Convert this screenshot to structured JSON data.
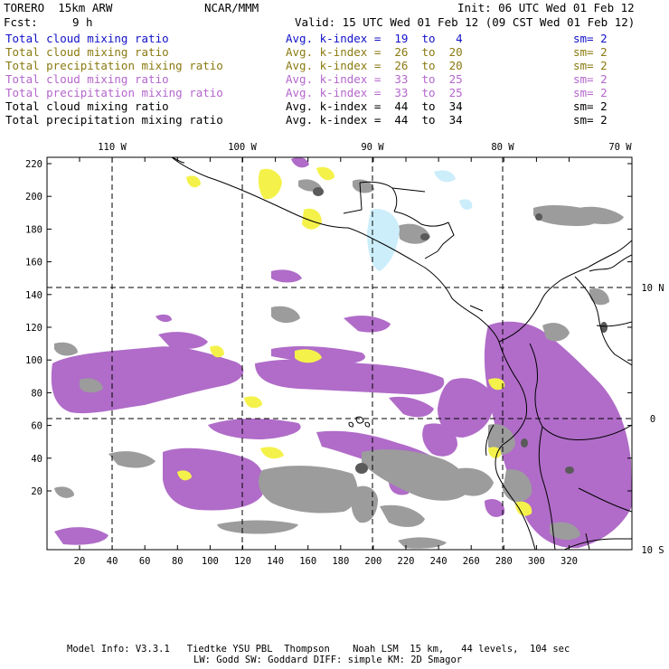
{
  "header": {
    "model": "TORERO  15km ARW",
    "org": "NCAR/MMM",
    "init": "Init: 06 UTC Wed 01 Feb 12",
    "fcst_label": "Fcst:",
    "fcst_value": "9 h",
    "valid": "Valid: 15 UTC Wed 01 Feb 12 (09 CST Wed 01 Feb 12)"
  },
  "legend": [
    {
      "field": "Total cloud mixing ratio",
      "kindex": "Avg. k-index =  19  to   4",
      "sm": "sm= 2",
      "color": "#1111c8"
    },
    {
      "field": "Total cloud mixing ratio",
      "kindex": "Avg. k-index =  26  to  20",
      "sm": "sm= 2",
      "color": "#8a7a10"
    },
    {
      "field": "Total precipitation mixing ratio",
      "kindex": "Avg. k-index =  26  to  20",
      "sm": "sm= 2",
      "color": "#8a7a10"
    },
    {
      "field": "Total cloud mixing ratio",
      "kindex": "Avg. k-index =  33  to  25",
      "sm": "sm= 2",
      "color": "#b466cc"
    },
    {
      "field": "Total precipitation mixing ratio",
      "kindex": "Avg. k-index =  33  to  25",
      "sm": "sm= 2",
      "color": "#b466cc"
    },
    {
      "field": "Total cloud mixing ratio",
      "kindex": "Avg. k-index =  44  to  34",
      "sm": "sm= 2",
      "color": "#000000"
    },
    {
      "field": "Total precipitation mixing ratio",
      "kindex": "Avg. k-index =  44  to  34",
      "sm": "sm= 2",
      "color": "#000000"
    }
  ],
  "map": {
    "top_labels": [
      "110 W",
      "100 W",
      "90 W",
      "80 W",
      "70 W"
    ],
    "right_labels": [
      "10 N",
      "0",
      "10 S"
    ],
    "y_ticks": [
      "220",
      "200",
      "180",
      "160",
      "140",
      "120",
      "100",
      "80",
      "60",
      "40",
      "20"
    ],
    "x_ticks": [
      "20",
      "40",
      "60",
      "80",
      "100",
      "120",
      "140",
      "160",
      "180",
      "200",
      "220",
      "240",
      "260",
      "280",
      "300",
      "320"
    ],
    "colors": {
      "violet": "#b06cc8",
      "gray": "#9c9c9c",
      "dark_gray": "#5a5a5a",
      "yellow": "#f4f24a",
      "light_blue": "#cceefa"
    }
  },
  "footer": {
    "line1": "Model Info: V3.3.1   Tiedtke YSU PBL  Thompson    Noah LSM  15 km,   44 levels,  104 sec",
    "line2": "LW: Godd SW: Goddard DIFF: simple KM: 2D Smagor"
  }
}
